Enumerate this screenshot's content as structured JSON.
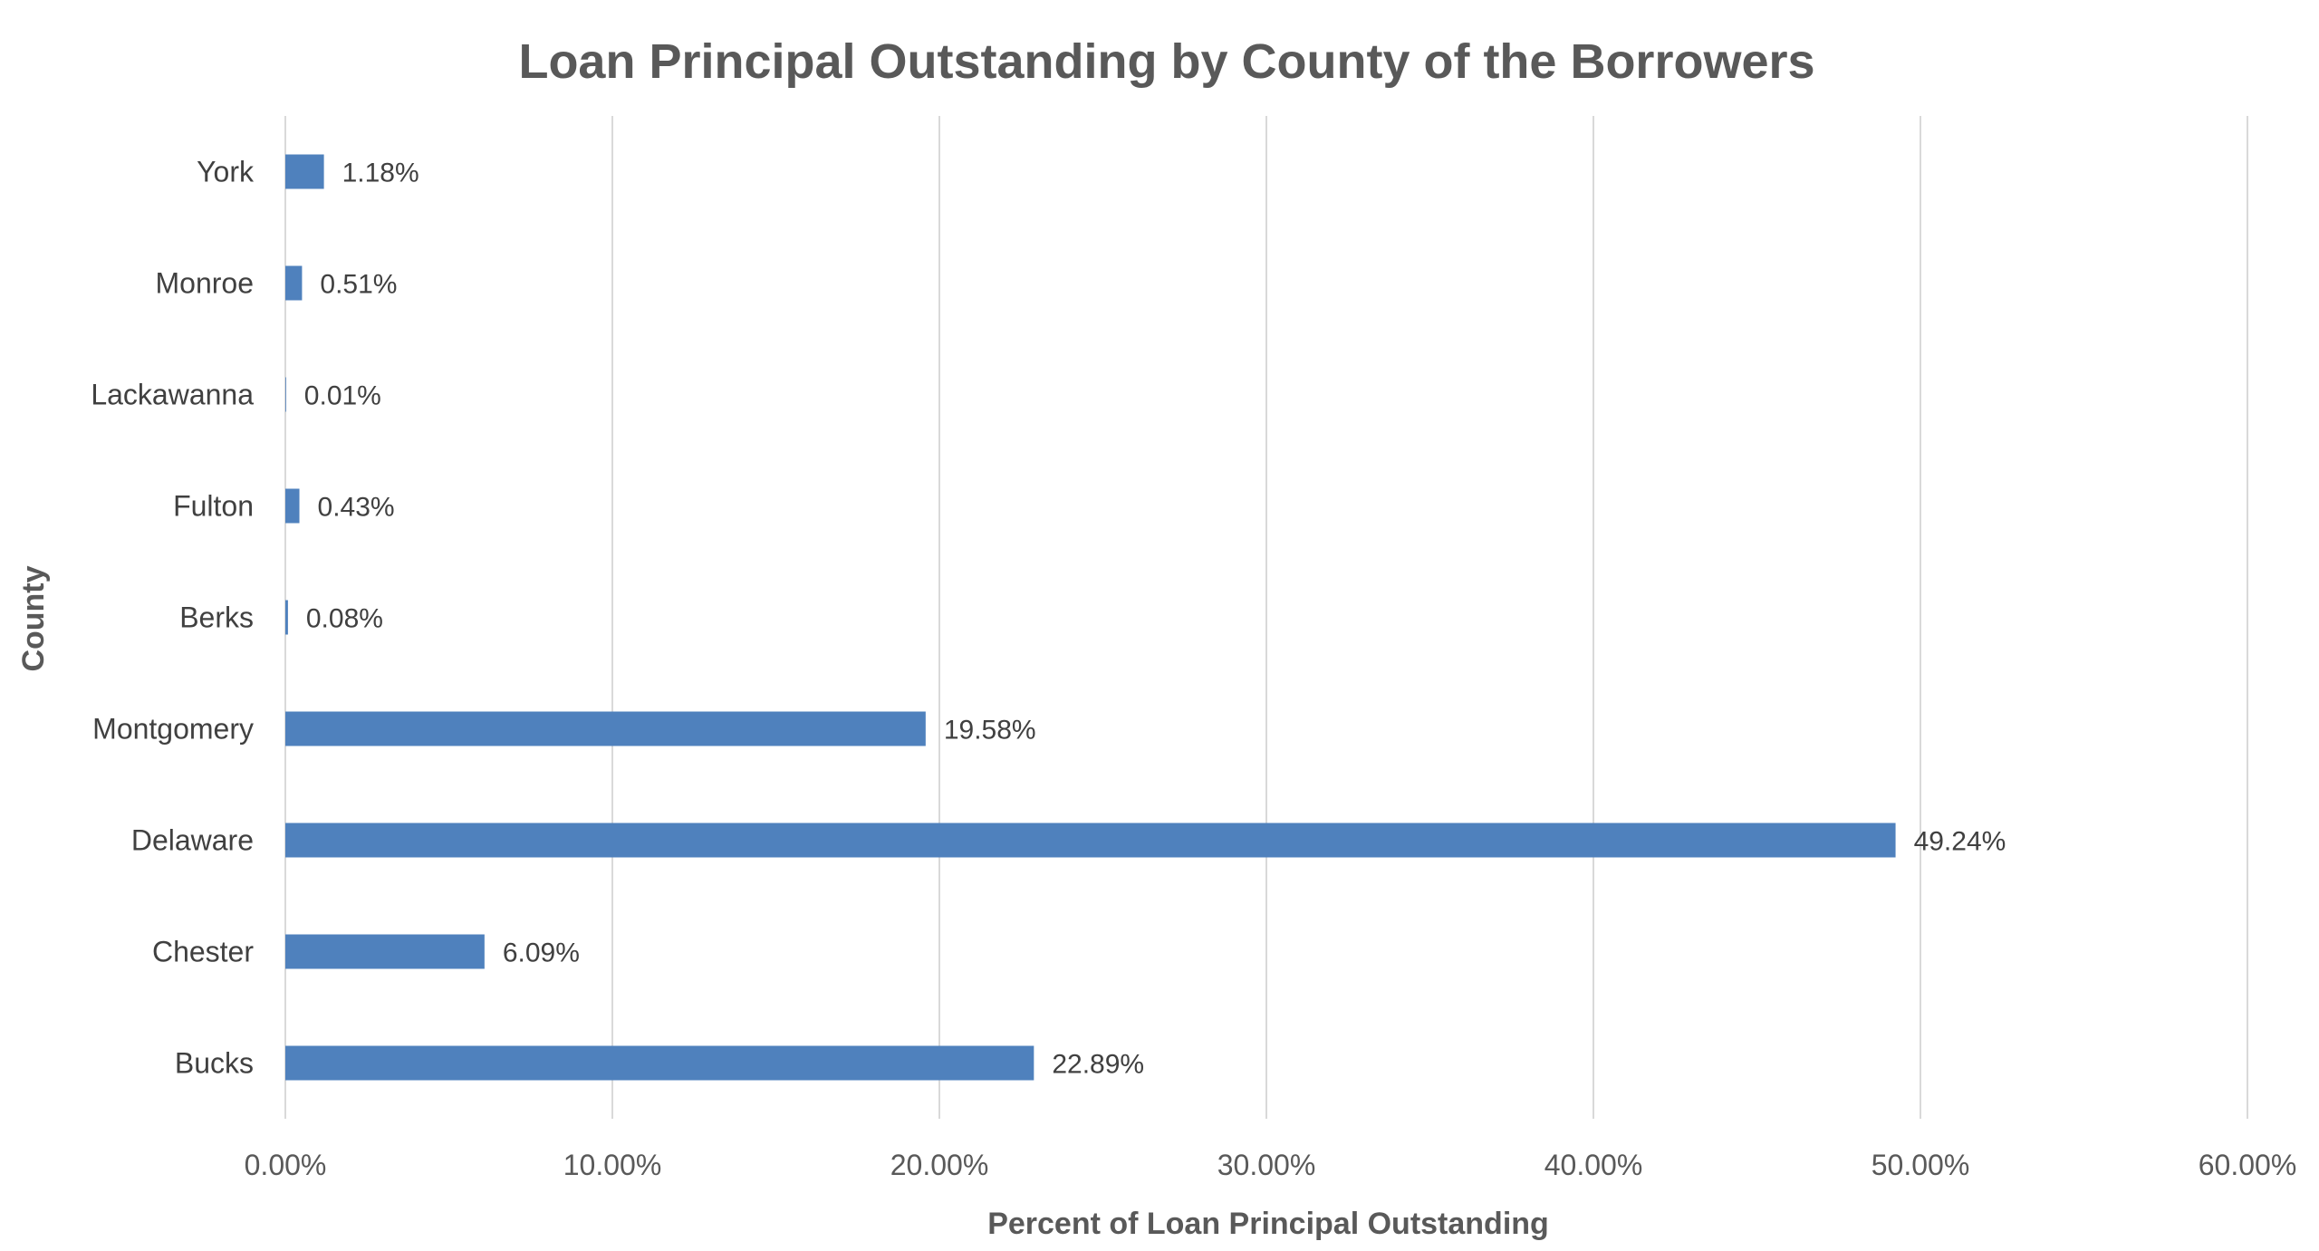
{
  "chart_data": {
    "type": "bar",
    "orientation": "horizontal",
    "title": "Loan Principal Outstanding by County of the Borrowers",
    "xlabel": "Percent of Loan Principal Outstanding",
    "ylabel": "County",
    "categories": [
      "Bucks",
      "Chester",
      "Delaware",
      "Montgomery",
      "Berks",
      "Fulton",
      "Lackawanna",
      "Monroe",
      "York"
    ],
    "values": [
      22.89,
      6.09,
      49.24,
      19.58,
      0.08,
      0.43,
      0.01,
      0.51,
      1.18
    ],
    "data_labels": [
      "22.89%",
      "6.09%",
      "49.24%",
      "19.58%",
      "0.08%",
      "0.43%",
      "0.01%",
      "0.51%",
      "1.18%"
    ],
    "xlim": [
      0,
      60
    ],
    "x_ticks": [
      "0.00%",
      "10.00%",
      "20.00%",
      "30.00%",
      "40.00%",
      "50.00%",
      "60.00%"
    ],
    "grid": "vertical",
    "legend": "none",
    "bar_color": "#4F81BD",
    "grid_color": "#D9D9D9"
  }
}
